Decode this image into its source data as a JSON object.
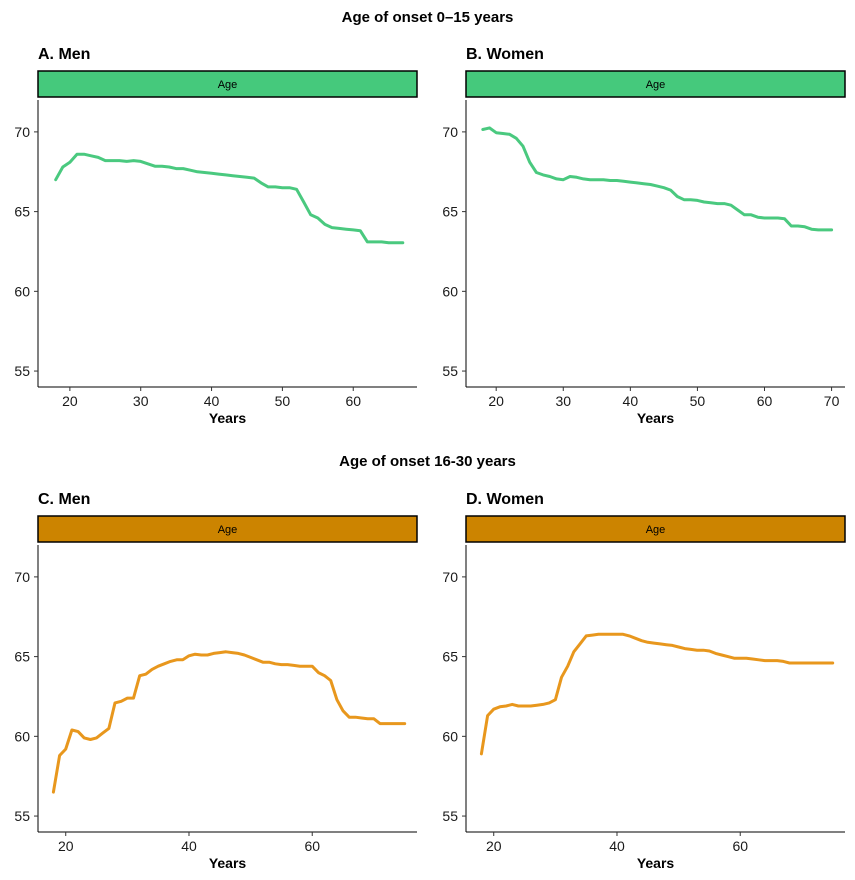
{
  "sections": [
    {
      "title": "Age of onset 0–15 years"
    },
    {
      "title": "Age of onset 16-30 years"
    }
  ],
  "colors": {
    "green": "#4ac97f",
    "orange": "#e8971d",
    "strip_green": "#45c97c",
    "strip_orange": "#cc8400"
  },
  "chart_data": [
    {
      "type": "line",
      "panel_title": "A. Men",
      "strip_label": "Age",
      "xlabel": "Years",
      "xlim": [
        15.5,
        69
      ],
      "ylim": [
        54,
        72
      ],
      "xticks": [
        20,
        30,
        40,
        50,
        60
      ],
      "yticks": [
        55,
        60,
        65,
        70
      ],
      "color": "#4ac97f",
      "strip_color": "#45c97c",
      "x": [
        18,
        19,
        20,
        21,
        22,
        23,
        24,
        25,
        26,
        27,
        28,
        29,
        30,
        31,
        32,
        33,
        34,
        35,
        36,
        37,
        38,
        39,
        40,
        41,
        42,
        43,
        44,
        45,
        46,
        47,
        48,
        49,
        50,
        51,
        52,
        53,
        54,
        55,
        56,
        57,
        58,
        59,
        60,
        61,
        62,
        63,
        64,
        65,
        66,
        67
      ],
      "y": [
        67.0,
        67.8,
        68.1,
        68.6,
        68.6,
        68.5,
        68.4,
        68.2,
        68.2,
        68.2,
        68.15,
        68.2,
        68.15,
        68.0,
        67.85,
        67.85,
        67.8,
        67.7,
        67.7,
        67.6,
        67.5,
        67.45,
        67.4,
        67.35,
        67.3,
        67.25,
        67.2,
        67.15,
        67.1,
        66.8,
        66.55,
        66.55,
        66.5,
        66.5,
        66.4,
        65.6,
        64.8,
        64.6,
        64.2,
        64.0,
        63.95,
        63.9,
        63.85,
        63.8,
        63.1,
        63.1,
        63.1,
        63.05,
        63.05,
        63.05
      ]
    },
    {
      "type": "line",
      "panel_title": "B. Women",
      "strip_label": "Age",
      "xlabel": "Years",
      "xlim": [
        15.5,
        72
      ],
      "ylim": [
        54,
        72
      ],
      "xticks": [
        20,
        30,
        40,
        50,
        60,
        70
      ],
      "yticks": [
        55,
        60,
        65,
        70
      ],
      "color": "#4ac97f",
      "strip_color": "#45c97c",
      "x": [
        18,
        19,
        20,
        21,
        22,
        23,
        24,
        25,
        26,
        27,
        28,
        29,
        30,
        31,
        32,
        33,
        34,
        35,
        36,
        37,
        38,
        39,
        40,
        41,
        42,
        43,
        44,
        45,
        46,
        47,
        48,
        49,
        50,
        51,
        52,
        53,
        54,
        55,
        56,
        57,
        58,
        59,
        60,
        61,
        62,
        63,
        64,
        65,
        66,
        67,
        68,
        69,
        70
      ],
      "y": [
        70.15,
        70.25,
        69.95,
        69.9,
        69.85,
        69.6,
        69.1,
        68.1,
        67.45,
        67.3,
        67.2,
        67.05,
        67.0,
        67.2,
        67.15,
        67.05,
        67.0,
        67.0,
        67.0,
        66.95,
        66.95,
        66.9,
        66.85,
        66.8,
        66.75,
        66.7,
        66.6,
        66.5,
        66.35,
        65.95,
        65.75,
        65.75,
        65.7,
        65.6,
        65.55,
        65.5,
        65.5,
        65.4,
        65.1,
        64.8,
        64.8,
        64.65,
        64.6,
        64.6,
        64.6,
        64.55,
        64.1,
        64.1,
        64.05,
        63.9,
        63.85,
        63.85,
        63.85
      ]
    },
    {
      "type": "line",
      "panel_title": "C. Men",
      "strip_label": "Age",
      "xlabel": "Years",
      "xlim": [
        15.5,
        77
      ],
      "ylim": [
        54,
        72
      ],
      "xticks": [
        20,
        40,
        60
      ],
      "yticks": [
        55,
        60,
        65,
        70
      ],
      "color": "#e8971d",
      "strip_color": "#cc8400",
      "x": [
        18,
        19,
        20,
        21,
        22,
        23,
        24,
        25,
        26,
        27,
        28,
        29,
        30,
        31,
        32,
        33,
        34,
        35,
        36,
        37,
        38,
        39,
        40,
        41,
        42,
        43,
        44,
        45,
        46,
        47,
        48,
        49,
        50,
        51,
        52,
        53,
        54,
        55,
        56,
        57,
        58,
        59,
        60,
        61,
        62,
        63,
        64,
        65,
        66,
        67,
        68,
        69,
        70,
        71,
        72,
        73,
        74,
        75
      ],
      "y": [
        56.5,
        58.8,
        59.2,
        60.4,
        60.3,
        59.9,
        59.8,
        59.9,
        60.2,
        60.5,
        62.1,
        62.2,
        62.4,
        62.4,
        63.8,
        63.9,
        64.2,
        64.4,
        64.55,
        64.7,
        64.8,
        64.8,
        65.05,
        65.15,
        65.1,
        65.1,
        65.2,
        65.25,
        65.3,
        65.25,
        65.2,
        65.1,
        64.95,
        64.8,
        64.65,
        64.65,
        64.55,
        64.5,
        64.5,
        64.45,
        64.4,
        64.4,
        64.4,
        64.0,
        63.8,
        63.5,
        62.3,
        61.6,
        61.2,
        61.2,
        61.15,
        61.1,
        61.1,
        60.8,
        60.8,
        60.8,
        60.8,
        60.8
      ]
    },
    {
      "type": "line",
      "panel_title": "D. Women",
      "strip_label": "Age",
      "xlabel": "Years",
      "xlim": [
        15.5,
        77
      ],
      "ylim": [
        54,
        72
      ],
      "xticks": [
        20,
        40,
        60
      ],
      "yticks": [
        55,
        60,
        65,
        70
      ],
      "color": "#e8971d",
      "strip_color": "#cc8400",
      "x": [
        18,
        19,
        20,
        21,
        22,
        23,
        24,
        25,
        26,
        27,
        28,
        29,
        30,
        31,
        32,
        33,
        34,
        35,
        36,
        37,
        38,
        39,
        40,
        41,
        42,
        43,
        44,
        45,
        46,
        47,
        48,
        49,
        50,
        51,
        52,
        53,
        54,
        55,
        56,
        57,
        58,
        59,
        60,
        61,
        62,
        63,
        64,
        65,
        66,
        67,
        68,
        69,
        70,
        71,
        72,
        73,
        74,
        75
      ],
      "y": [
        58.9,
        61.3,
        61.7,
        61.85,
        61.9,
        62.0,
        61.9,
        61.9,
        61.9,
        61.95,
        62.0,
        62.1,
        62.3,
        63.7,
        64.4,
        65.3,
        65.8,
        66.3,
        66.35,
        66.4,
        66.4,
        66.4,
        66.4,
        66.4,
        66.3,
        66.15,
        66.0,
        65.9,
        65.85,
        65.8,
        65.75,
        65.7,
        65.6,
        65.5,
        65.45,
        65.4,
        65.4,
        65.35,
        65.2,
        65.1,
        65.0,
        64.9,
        64.9,
        64.9,
        64.85,
        64.8,
        64.75,
        64.75,
        64.75,
        64.7,
        64.6,
        64.6,
        64.6,
        64.6,
        64.6,
        64.6,
        64.6,
        64.6
      ]
    }
  ]
}
